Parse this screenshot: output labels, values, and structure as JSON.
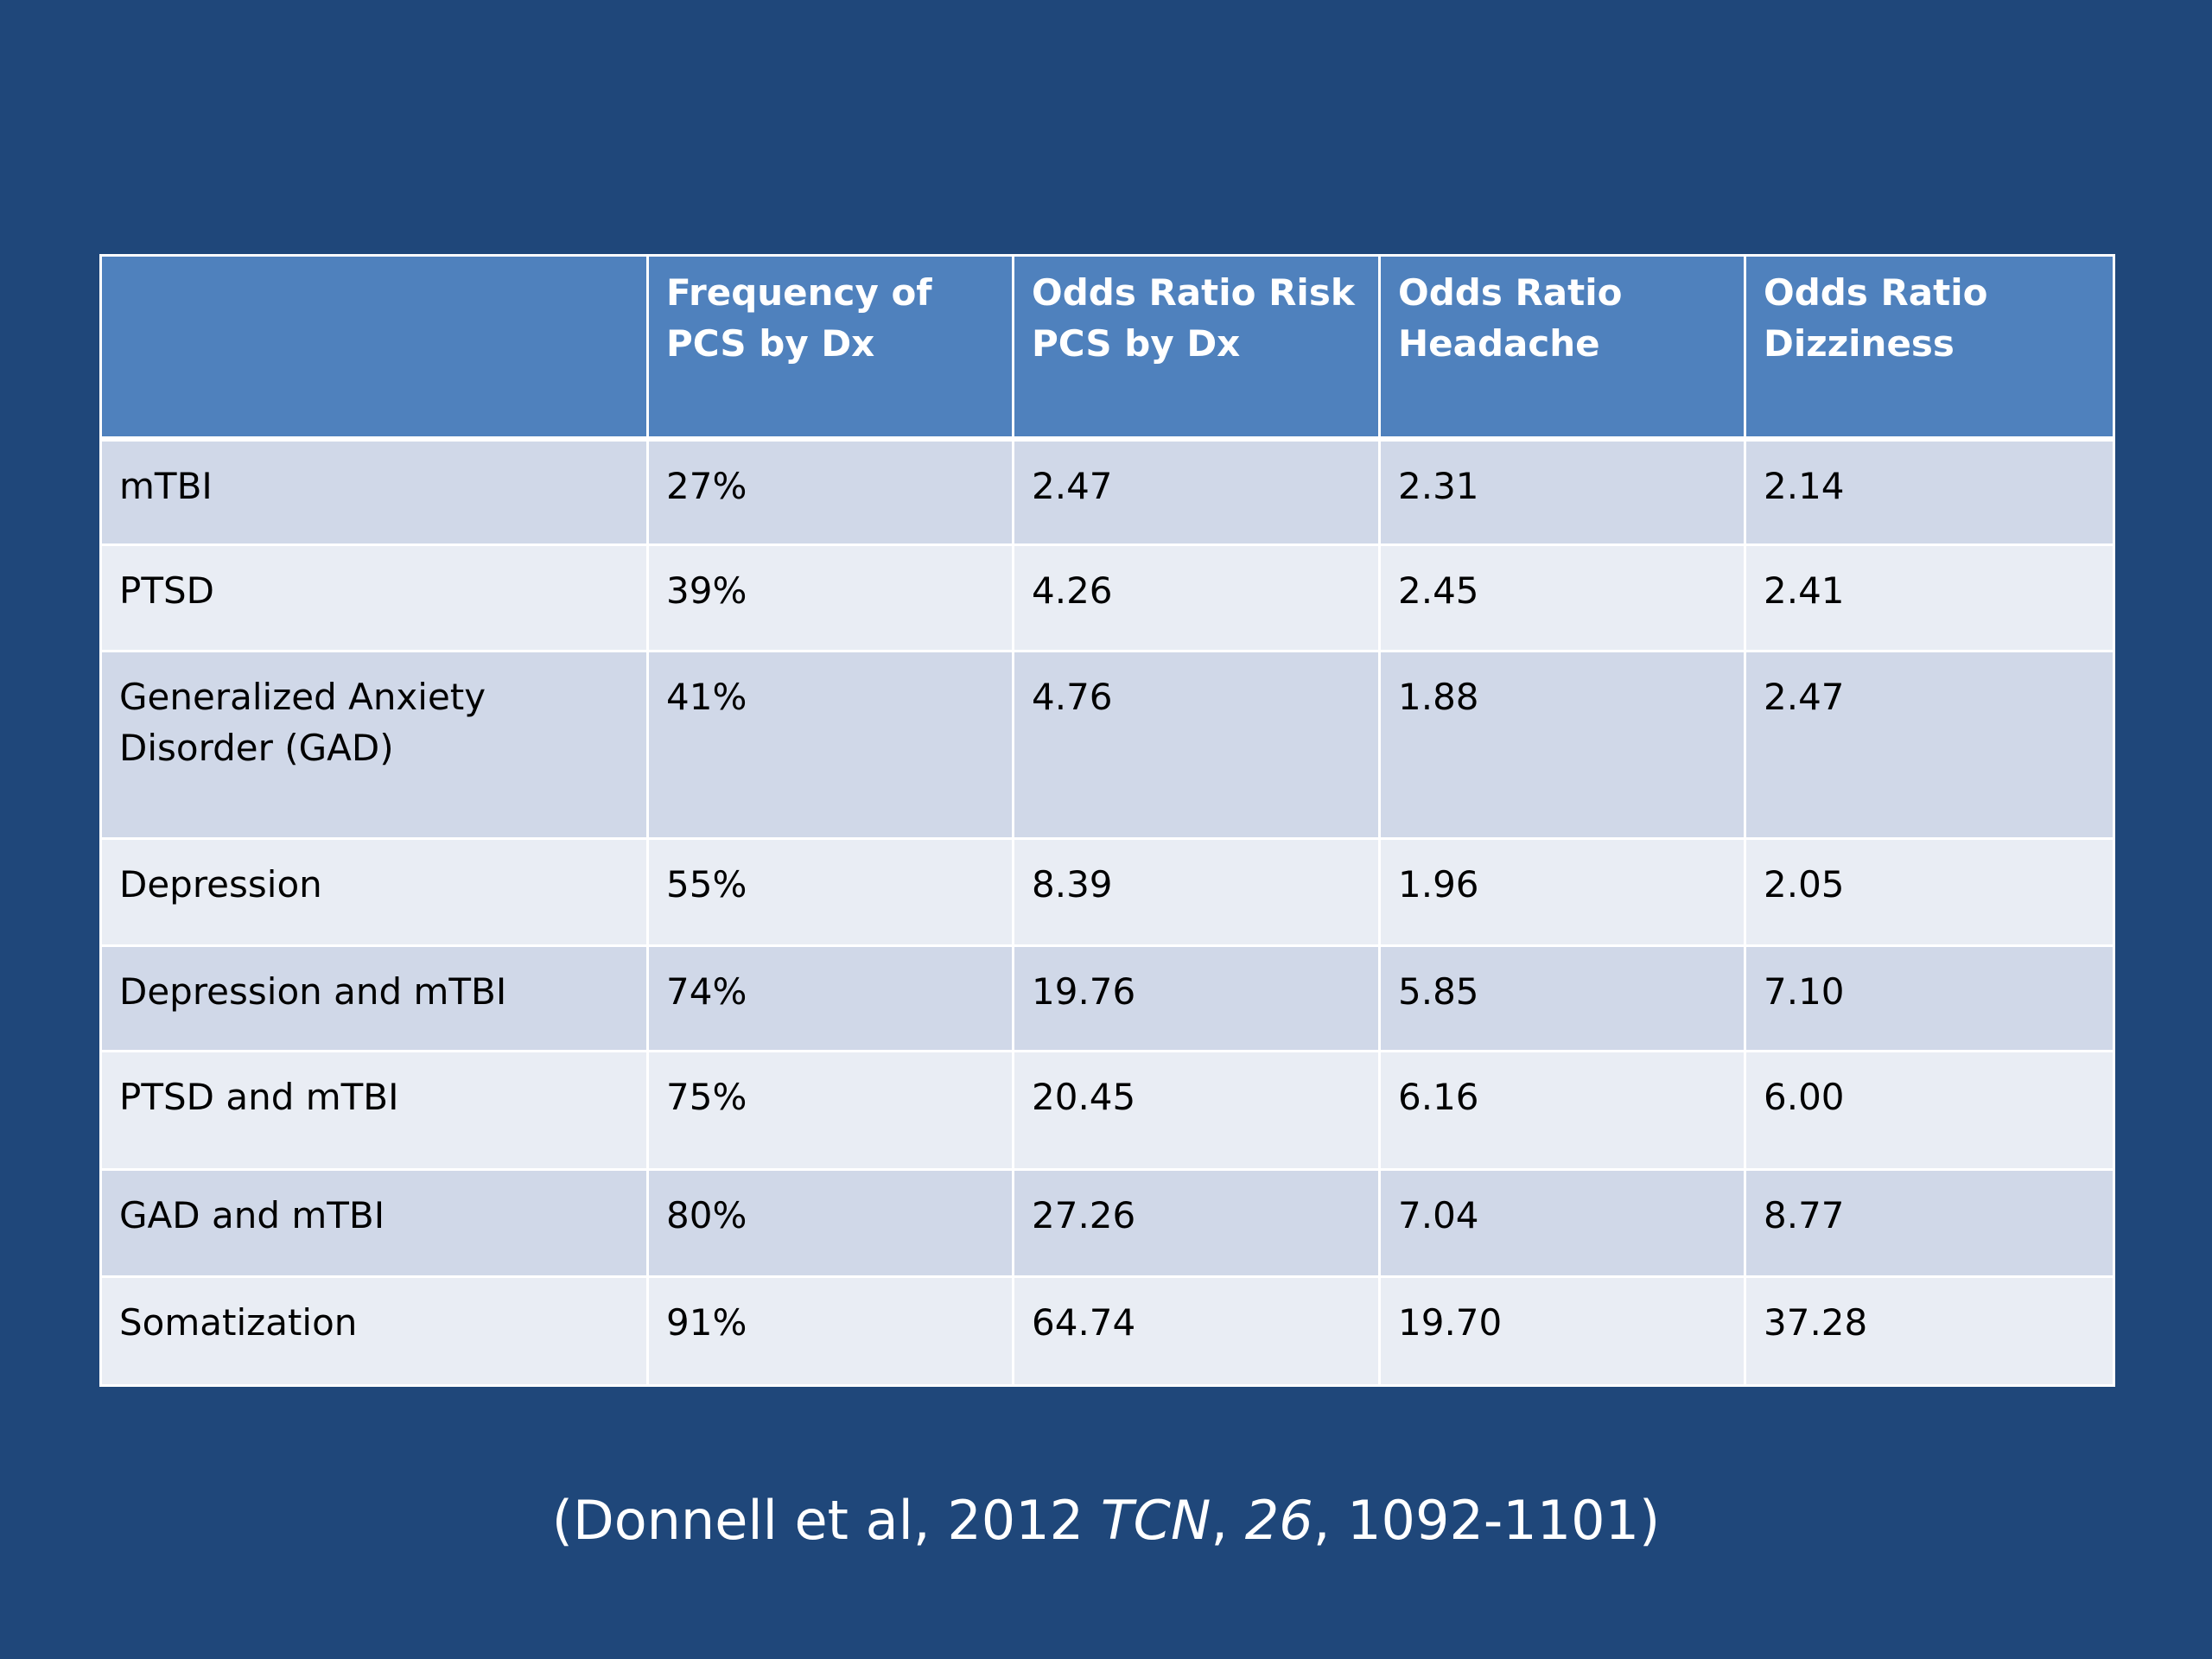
{
  "table": {
    "headers": [
      "",
      "Frequency  of PCS by Dx",
      "Odds Ratio Risk PCS by Dx",
      "Odds Ratio Headache",
      "Odds Ratio Dizziness"
    ],
    "rows": [
      [
        "mTBI",
        "27%",
        "2.47",
        "2.31",
        "2.14"
      ],
      [
        "PTSD",
        "39%",
        "4.26",
        "2.45",
        "2.41"
      ],
      [
        "Generalized Anxiety Disorder (GAD)",
        "41%",
        "4.76",
        "1.88",
        "2.47"
      ],
      [
        "Depression",
        "55%",
        "8.39",
        "1.96",
        "2.05"
      ],
      [
        "Depression and mTBI",
        "74%",
        "19.76",
        "5.85",
        "7.10"
      ],
      [
        "PTSD and mTBI",
        "75%",
        "20.45",
        "6.16",
        "6.00"
      ],
      [
        "GAD and mTBI",
        "80%",
        "27.26",
        "7.04",
        "8.77"
      ],
      [
        "Somatization",
        "91%",
        "64.74",
        "19.70",
        "37.28"
      ]
    ]
  },
  "citation": {
    "open": "(Donnell et al, 2012 ",
    "journal": "TCN",
    "sep1": ", ",
    "volume": "26",
    "rest": ", 1092-1101)"
  },
  "colors": {
    "background": "#1f477a",
    "header": "#4f81bd",
    "row_odd": "#d0d8e8",
    "row_even": "#e9edf4"
  }
}
